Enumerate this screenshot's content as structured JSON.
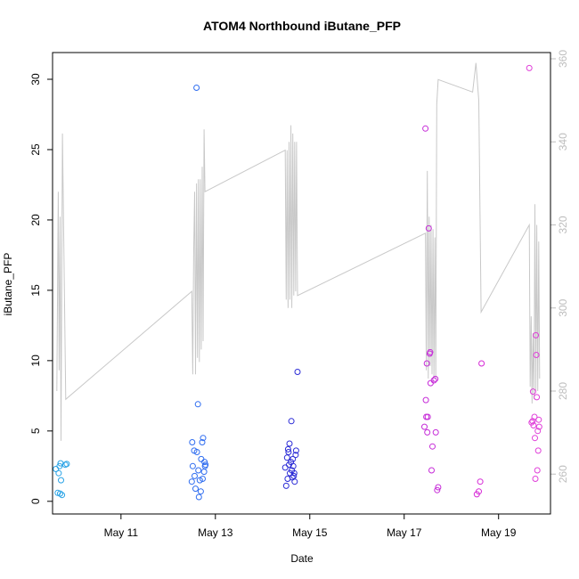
{
  "chart_data": {
    "type": "scatter",
    "title": "ATOM4 Northbound iButane_PFP",
    "xlabel": "Date",
    "ylabel": "iButane_PFP",
    "x_ticks": [
      {
        "label": "May 11",
        "day": 11
      },
      {
        "label": "May 13",
        "day": 13
      },
      {
        "label": "May 15",
        "day": 15
      },
      {
        "label": "May 17",
        "day": 17
      },
      {
        "label": "May 19",
        "day": 19
      }
    ],
    "xlim": [
      9.55,
      20.1
    ],
    "y_ticks": [
      0,
      5,
      10,
      15,
      20,
      25,
      30
    ],
    "ylim": [
      -0.9,
      31.9
    ],
    "y2_ticks": [
      260,
      280,
      300,
      320,
      340,
      360
    ],
    "y2lim": [
      250.4,
      361.5
    ],
    "y2_color": "#bdbdbd",
    "grid": false,
    "points": [
      {
        "x": 9.62,
        "y": 2.3,
        "color": "#29a3e6"
      },
      {
        "x": 9.66,
        "y": 0.6,
        "color": "#29a3e6"
      },
      {
        "x": 9.68,
        "y": 2.0,
        "color": "#29a3e6"
      },
      {
        "x": 9.7,
        "y": 2.5,
        "color": "#29a3e6"
      },
      {
        "x": 9.71,
        "y": 0.55,
        "color": "#29a3e6"
      },
      {
        "x": 9.72,
        "y": 2.7,
        "color": "#29a3e6"
      },
      {
        "x": 9.73,
        "y": 1.5,
        "color": "#29a3e6"
      },
      {
        "x": 9.75,
        "y": 0.45,
        "color": "#29a3e6"
      },
      {
        "x": 9.82,
        "y": 2.6,
        "color": "#29a3e6"
      },
      {
        "x": 9.85,
        "y": 2.65,
        "color": "#29a3e6"
      },
      {
        "x": 12.5,
        "y": 1.4,
        "color": "#2f6df0"
      },
      {
        "x": 12.51,
        "y": 4.2,
        "color": "#2f6df0"
      },
      {
        "x": 12.52,
        "y": 2.5,
        "color": "#2f6df0"
      },
      {
        "x": 12.55,
        "y": 3.6,
        "color": "#2f6df0"
      },
      {
        "x": 12.56,
        "y": 1.8,
        "color": "#2f6df0"
      },
      {
        "x": 12.58,
        "y": 0.9,
        "color": "#2f6df0"
      },
      {
        "x": 12.6,
        "y": 29.4,
        "color": "#2f6df0"
      },
      {
        "x": 12.61,
        "y": 3.5,
        "color": "#2f6df0"
      },
      {
        "x": 12.63,
        "y": 6.9,
        "color": "#2f6df0"
      },
      {
        "x": 12.64,
        "y": 2.2,
        "color": "#2f6df0"
      },
      {
        "x": 12.65,
        "y": 0.3,
        "color": "#2f6df0"
      },
      {
        "x": 12.67,
        "y": 1.5,
        "color": "#2f6df0"
      },
      {
        "x": 12.69,
        "y": 0.7,
        "color": "#2f6df0"
      },
      {
        "x": 12.7,
        "y": 3.0,
        "color": "#2f6df0"
      },
      {
        "x": 12.72,
        "y": 4.2,
        "color": "#2f6df0"
      },
      {
        "x": 12.73,
        "y": 1.6,
        "color": "#2f6df0"
      },
      {
        "x": 12.74,
        "y": 4.5,
        "color": "#2f6df0"
      },
      {
        "x": 12.76,
        "y": 2.1,
        "color": "#2f6df0"
      },
      {
        "x": 12.77,
        "y": 2.8,
        "color": "#2f6df0"
      },
      {
        "x": 12.78,
        "y": 2.5,
        "color": "#2f6df0"
      },
      {
        "x": 12.79,
        "y": 2.6,
        "color": "#2f6df0"
      },
      {
        "x": 14.48,
        "y": 2.4,
        "color": "#2b2bd6"
      },
      {
        "x": 14.5,
        "y": 1.1,
        "color": "#2b2bd6"
      },
      {
        "x": 14.52,
        "y": 3.1,
        "color": "#2b2bd6"
      },
      {
        "x": 14.53,
        "y": 1.6,
        "color": "#2b2bd6"
      },
      {
        "x": 14.54,
        "y": 3.7,
        "color": "#2b2bd6"
      },
      {
        "x": 14.55,
        "y": 3.5,
        "color": "#2b2bd6"
      },
      {
        "x": 14.56,
        "y": 2.6,
        "color": "#2b2bd6"
      },
      {
        "x": 14.57,
        "y": 4.1,
        "color": "#2b2bd6"
      },
      {
        "x": 14.58,
        "y": 2.0,
        "color": "#2b2bd6"
      },
      {
        "x": 14.6,
        "y": 2.8,
        "color": "#2b2bd6"
      },
      {
        "x": 14.61,
        "y": 5.7,
        "color": "#2b2bd6"
      },
      {
        "x": 14.62,
        "y": 2.2,
        "color": "#2b2bd6"
      },
      {
        "x": 14.63,
        "y": 1.7,
        "color": "#2b2bd6"
      },
      {
        "x": 14.64,
        "y": 3.0,
        "color": "#2b2bd6"
      },
      {
        "x": 14.65,
        "y": 2.5,
        "color": "#2b2bd6"
      },
      {
        "x": 14.66,
        "y": 1.8,
        "color": "#2b2bd6"
      },
      {
        "x": 14.67,
        "y": 2.0,
        "color": "#2b2bd6"
      },
      {
        "x": 14.68,
        "y": 1.4,
        "color": "#2b2bd6"
      },
      {
        "x": 14.7,
        "y": 3.3,
        "color": "#2b2bd6"
      },
      {
        "x": 14.71,
        "y": 3.6,
        "color": "#2b2bd6"
      },
      {
        "x": 14.74,
        "y": 9.2,
        "color": "#2b2bd6"
      },
      {
        "x": 17.43,
        "y": 5.3,
        "color": "#c62cd8"
      },
      {
        "x": 17.45,
        "y": 26.5,
        "color": "#c62cd8"
      },
      {
        "x": 17.46,
        "y": 7.2,
        "color": "#c62cd8"
      },
      {
        "x": 17.47,
        "y": 6.0,
        "color": "#c62cd8"
      },
      {
        "x": 17.48,
        "y": 9.8,
        "color": "#c62cd8"
      },
      {
        "x": 17.49,
        "y": 4.9,
        "color": "#c62cd8"
      },
      {
        "x": 17.5,
        "y": 6.0,
        "color": "#c62cd8"
      },
      {
        "x": 17.52,
        "y": 19.4,
        "color": "#c62cd8"
      },
      {
        "x": 17.54,
        "y": 10.5,
        "color": "#c62cd8"
      },
      {
        "x": 17.55,
        "y": 10.6,
        "color": "#c62cd8"
      },
      {
        "x": 17.56,
        "y": 8.4,
        "color": "#c62cd8"
      },
      {
        "x": 17.58,
        "y": 2.2,
        "color": "#c62cd8"
      },
      {
        "x": 17.6,
        "y": 3.9,
        "color": "#c62cd8"
      },
      {
        "x": 17.63,
        "y": 8.6,
        "color": "#c62cd8"
      },
      {
        "x": 17.66,
        "y": 8.7,
        "color": "#c62cd8"
      },
      {
        "x": 17.67,
        "y": 4.9,
        "color": "#c62cd8"
      },
      {
        "x": 17.7,
        "y": 0.8,
        "color": "#c62cd8"
      },
      {
        "x": 17.72,
        "y": 1.0,
        "color": "#c62cd8"
      },
      {
        "x": 18.54,
        "y": 0.5,
        "color": "#d629d6"
      },
      {
        "x": 18.58,
        "y": 0.7,
        "color": "#d629d6"
      },
      {
        "x": 18.61,
        "y": 1.4,
        "color": "#d629d6"
      },
      {
        "x": 18.64,
        "y": 9.8,
        "color": "#d629d6"
      },
      {
        "x": 19.65,
        "y": 30.8,
        "color": "#e03fd9"
      },
      {
        "x": 19.7,
        "y": 5.6,
        "color": "#e03fd9"
      },
      {
        "x": 19.72,
        "y": 5.7,
        "color": "#e03fd9"
      },
      {
        "x": 19.73,
        "y": 7.8,
        "color": "#e03fd9"
      },
      {
        "x": 19.74,
        "y": 5.4,
        "color": "#e03fd9"
      },
      {
        "x": 19.76,
        "y": 6.0,
        "color": "#e03fd9"
      },
      {
        "x": 19.77,
        "y": 4.5,
        "color": "#e03fd9"
      },
      {
        "x": 19.78,
        "y": 1.6,
        "color": "#e03fd9"
      },
      {
        "x": 19.79,
        "y": 11.8,
        "color": "#e03fd9"
      },
      {
        "x": 19.8,
        "y": 10.4,
        "color": "#e03fd9"
      },
      {
        "x": 19.81,
        "y": 7.4,
        "color": "#e03fd9"
      },
      {
        "x": 19.82,
        "y": 2.2,
        "color": "#e03fd9"
      },
      {
        "x": 19.83,
        "y": 5.0,
        "color": "#e03fd9"
      },
      {
        "x": 19.84,
        "y": 3.6,
        "color": "#e03fd9"
      },
      {
        "x": 19.85,
        "y": 5.8,
        "color": "#e03fd9"
      },
      {
        "x": 19.86,
        "y": 5.3,
        "color": "#e03fd9"
      }
    ],
    "secondary_line": [
      [
        9.64,
        280
      ],
      [
        9.67,
        328
      ],
      [
        9.69,
        285
      ],
      [
        9.71,
        322
      ],
      [
        9.73,
        268
      ],
      [
        9.76,
        342
      ],
      [
        9.83,
        278
      ],
      [
        12.5,
        304
      ],
      [
        12.52,
        284
      ],
      [
        12.54,
        313
      ],
      [
        12.56,
        328
      ],
      [
        12.58,
        284
      ],
      [
        12.6,
        330
      ],
      [
        12.62,
        288
      ],
      [
        12.64,
        331
      ],
      [
        12.66,
        287
      ],
      [
        12.68,
        331
      ],
      [
        12.7,
        290
      ],
      [
        12.72,
        334
      ],
      [
        12.74,
        292
      ],
      [
        12.76,
        343
      ],
      [
        12.78,
        328
      ],
      [
        14.48,
        338
      ],
      [
        14.5,
        302
      ],
      [
        14.52,
        338
      ],
      [
        14.54,
        300
      ],
      [
        14.56,
        340
      ],
      [
        14.58,
        302
      ],
      [
        14.6,
        344
      ],
      [
        14.62,
        300
      ],
      [
        14.64,
        342
      ],
      [
        14.66,
        303
      ],
      [
        14.68,
        340
      ],
      [
        14.7,
        304
      ],
      [
        14.72,
        340
      ],
      [
        14.74,
        303
      ],
      [
        17.45,
        318
      ],
      [
        17.47,
        285
      ],
      [
        17.49,
        333
      ],
      [
        17.51,
        283
      ],
      [
        17.53,
        322
      ],
      [
        17.55,
        286
      ],
      [
        17.57,
        320
      ],
      [
        17.59,
        284
      ],
      [
        17.61,
        319
      ],
      [
        17.63,
        283
      ],
      [
        17.65,
        317
      ],
      [
        17.67,
        283
      ],
      [
        17.69,
        349
      ],
      [
        17.72,
        355
      ],
      [
        18.45,
        352
      ],
      [
        18.52,
        359
      ],
      [
        18.58,
        350
      ],
      [
        18.63,
        299
      ],
      [
        19.65,
        320
      ],
      [
        19.67,
        281
      ],
      [
        19.69,
        298
      ],
      [
        19.71,
        277
      ],
      [
        19.73,
        294
      ],
      [
        19.75,
        278
      ],
      [
        19.77,
        325
      ],
      [
        19.79,
        280
      ],
      [
        19.81,
        320
      ],
      [
        19.83,
        280
      ],
      [
        19.85,
        316
      ],
      [
        19.87,
        283
      ]
    ]
  }
}
